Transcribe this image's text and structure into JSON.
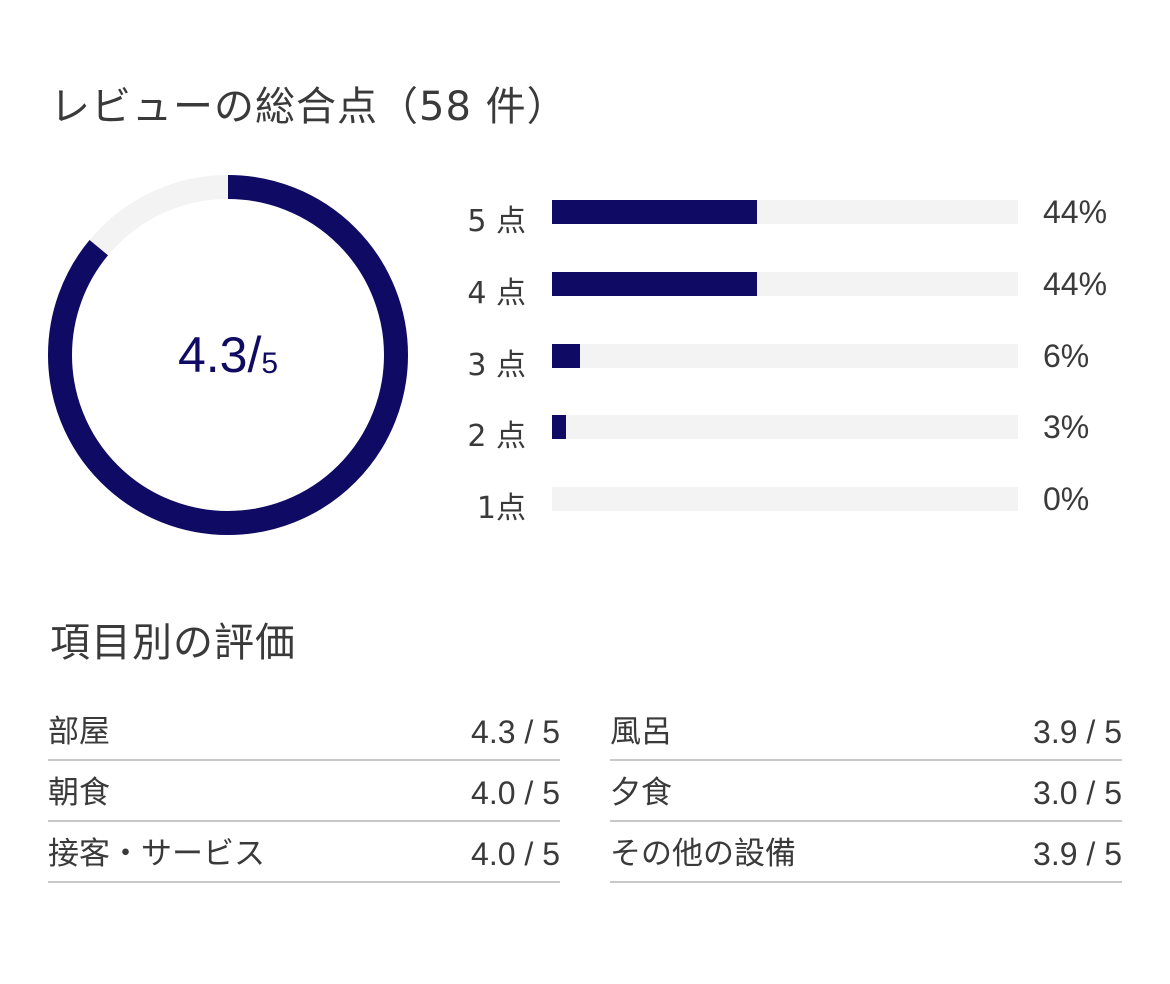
{
  "overall": {
    "title": "レビューの総合点（58 件）",
    "score": "4.3",
    "slash": "/",
    "max": "5",
    "score_value": 4.3,
    "max_value": 5,
    "ring_color": "#0f0a63",
    "track_color": "#f3f3f4"
  },
  "distribution": [
    {
      "label": "5 点",
      "percent_text": "44%",
      "percent": 44
    },
    {
      "label": "4 点",
      "percent_text": "44%",
      "percent": 44
    },
    {
      "label": "3 点",
      "percent_text": "6%",
      "percent": 6
    },
    {
      "label": "2 点",
      "percent_text": "3%",
      "percent": 3
    },
    {
      "label": "1点",
      "percent_text": "0%",
      "percent": 0
    }
  ],
  "categories": {
    "title": "項目別の評価",
    "left": [
      {
        "name": "部屋",
        "score": "4.3 / 5"
      },
      {
        "name": "朝食",
        "score": "4.0 / 5"
      },
      {
        "name": "接客・サービス",
        "score": "4.0 / 5"
      }
    ],
    "right": [
      {
        "name": "風呂",
        "score": "3.9 / 5"
      },
      {
        "name": "夕食",
        "score": "3.0 / 5"
      },
      {
        "name": "その他の設備",
        "score": "3.9 / 5"
      }
    ]
  }
}
